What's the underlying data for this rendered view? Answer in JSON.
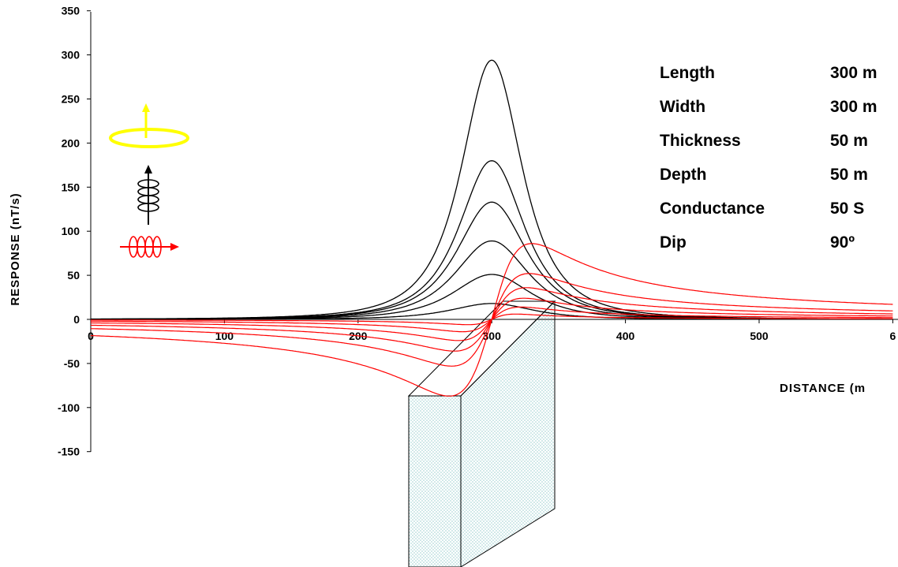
{
  "chart_data": {
    "type": "line",
    "title": "",
    "xlabel": "DISTANCE (m",
    "ylabel": "RESPONSE (nT/s)",
    "xlim": [
      0,
      600
    ],
    "ylim": [
      -150,
      350
    ],
    "x_ticks": [
      "0",
      "100",
      "200",
      "300",
      "400",
      "500",
      "6"
    ],
    "y_ticks": [
      "350",
      "300",
      "250",
      "200",
      "150",
      "100",
      "50",
      "0",
      "-50",
      "-100",
      "-150"
    ],
    "grid": false,
    "series_colors": {
      "vertical_component": "#000000",
      "horizontal_component": "#ff0000"
    },
    "vertical_component_peaks": [
      {
        "x": 300,
        "y": 294
      },
      {
        "x": 300,
        "y": 180
      },
      {
        "x": 300,
        "y": 133
      },
      {
        "x": 300,
        "y": 89
      },
      {
        "x": 300,
        "y": 51
      },
      {
        "x": 300,
        "y": 18
      }
    ],
    "horizontal_component_extrema": [
      {
        "min": {
          "x": 268,
          "y": -87
        },
        "max": {
          "x": 330,
          "y": 86
        }
      },
      {
        "min": {
          "x": 270,
          "y": -53
        },
        "max": {
          "x": 328,
          "y": 52
        }
      },
      {
        "min": {
          "x": 272,
          "y": -36
        },
        "max": {
          "x": 326,
          "y": 36
        }
      },
      {
        "min": {
          "x": 275,
          "y": -24
        },
        "max": {
          "x": 324,
          "y": 24
        }
      },
      {
        "min": {
          "x": 278,
          "y": -14
        },
        "max": {
          "x": 322,
          "y": 14
        }
      },
      {
        "min": {
          "x": 282,
          "y": -6
        },
        "max": {
          "x": 318,
          "y": 6
        }
      }
    ]
  },
  "parameters": [
    {
      "name": "Length",
      "value": "300 m"
    },
    {
      "name": "Width",
      "value": "300 m"
    },
    {
      "name": "Thickness",
      "value": "50 m"
    },
    {
      "name": "Depth",
      "value": "50 m"
    },
    {
      "name": "Conductance",
      "value": "50 S"
    },
    {
      "name": "Dip",
      "value": "90º"
    }
  ],
  "icons": {
    "transmitter_loop": "yellow-loop-arrow-up-icon",
    "vertical_receiver": "vertical-coil-icon",
    "horizontal_receiver": "horizontal-coil-icon"
  },
  "colors": {
    "transmitter": "#ffff00",
    "vertical_curves": "#000000",
    "horizontal_curves": "#ff0000",
    "conductor_fill": "#d8ecec"
  }
}
